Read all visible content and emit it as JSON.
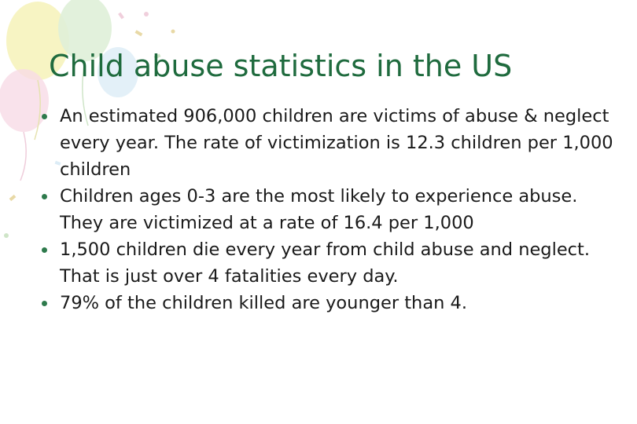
{
  "slide": {
    "title": "Child abuse statistics in the US",
    "bullets": [
      "An estimated 906,000 children are victims of abuse & neglect every year. The rate of victimization is 12.3 children per 1,000 children",
      "Children ages 0-3 are the most likely to experience abuse. They are victimized at a rate of 16.4 per 1,000",
      "1,500 children die every year from child abuse and neglect. That is just over 4 fatalities every day.",
      "79% of the children killed are younger than 4."
    ]
  },
  "colors": {
    "title": "#1f6b3e",
    "bullet_marker": "#2e7a4c",
    "balloon_yellow": "#f6f2b8",
    "balloon_green": "#dff0d8",
    "balloon_pink": "#f7dbe6",
    "balloon_blue": "#dcecf6"
  },
  "icons": [
    "balloons-decoration-icon",
    "bullet-dot-icon"
  ]
}
